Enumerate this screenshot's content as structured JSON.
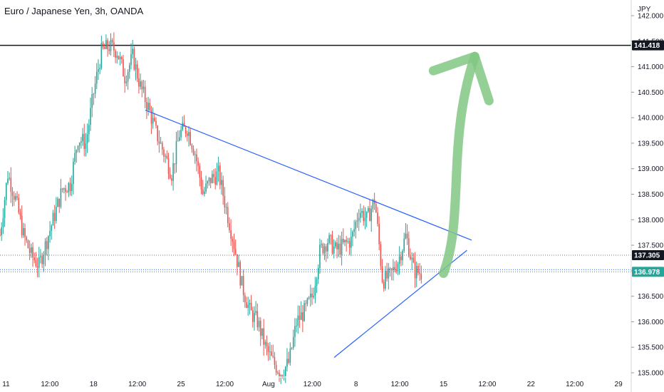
{
  "header": {
    "title": "Euro / Japanese Yen, 3h, OANDA"
  },
  "chart_data": {
    "type": "candlestick",
    "currency_label": "JPY",
    "ylim": [
      135.0,
      142.0
    ],
    "y_ticks": [
      "142.000",
      "141.500",
      "141.000",
      "140.500",
      "140.000",
      "139.500",
      "139.000",
      "138.500",
      "138.000",
      "137.500",
      "137.000",
      "136.500",
      "136.000",
      "135.500",
      "135.000"
    ],
    "x_ticks": [
      "11",
      "12:00",
      "18",
      "12:00",
      "25",
      "12:00",
      "Aug",
      "12:00",
      "8",
      "12:00",
      "15",
      "12:00",
      "22",
      "12:00",
      "29"
    ],
    "colors": {
      "up": "#26a69a",
      "down": "#ef5350",
      "trendline": "#2962ff",
      "arrow": "#81c784"
    },
    "price_tags": [
      {
        "label": "141.418",
        "value": 141.418,
        "style": "solid-dark"
      },
      {
        "label": "137.305",
        "value": 137.305,
        "style": "dotted-dark"
      },
      {
        "label": "136.978",
        "value": 136.978,
        "style": "dotted-teal"
      }
    ],
    "trendlines": [
      {
        "name": "resistance",
        "from": {
          "date": "Jul 21 15:00",
          "price": 140.15
        },
        "to": {
          "date": "Aug 16 18:00",
          "price": 137.6
        }
      },
      {
        "name": "support",
        "from": {
          "date": "Aug 5 18:00",
          "price": 135.3
        },
        "to": {
          "date": "Aug 16 09:00",
          "price": 137.4
        }
      }
    ],
    "projection_arrow": {
      "from": {
        "date": "Aug 14 12:00",
        "price": 136.95
      },
      "to": {
        "date": "Aug 17 00:00",
        "price": 141.2
      }
    },
    "price_path": [
      {
        "date": "Jul 10 00:00",
        "price": 137.7
      },
      {
        "date": "Jul 10 15:00",
        "price": 138.9
      },
      {
        "date": "Jul 11 06:00",
        "price": 138.4
      },
      {
        "date": "Jul 11 21:00",
        "price": 137.7
      },
      {
        "date": "Jul 12 12:00",
        "price": 137.3
      },
      {
        "date": "Jul 13 03:00",
        "price": 137.1
      },
      {
        "date": "Jul 13 18:00",
        "price": 137.6
      },
      {
        "date": "Jul 14 09:00",
        "price": 138.1
      },
      {
        "date": "Jul 15 00:00",
        "price": 138.6
      },
      {
        "date": "Jul 15 15:00",
        "price": 138.7
      },
      {
        "date": "Jul 16 06:00",
        "price": 139.6
      },
      {
        "date": "Jul 16 21:00",
        "price": 139.5
      },
      {
        "date": "Jul 17 12:00",
        "price": 140.5
      },
      {
        "date": "Jul 18 03:00",
        "price": 141.3
      },
      {
        "date": "Jul 18 18:00",
        "price": 141.4
      },
      {
        "date": "Jul 19 09:00",
        "price": 141.3
      },
      {
        "date": "Jul 20 00:00",
        "price": 140.8
      },
      {
        "date": "Jul 20 15:00",
        "price": 141.2
      },
      {
        "date": "Jul 21 06:00",
        "price": 140.6
      },
      {
        "date": "Jul 21 21:00",
        "price": 140.2
      },
      {
        "date": "Jul 22 12:00",
        "price": 139.7
      },
      {
        "date": "Jul 23 03:00",
        "price": 139.3
      },
      {
        "date": "Jul 23 18:00",
        "price": 138.9
      },
      {
        "date": "Jul 24 09:00",
        "price": 139.7
      },
      {
        "date": "Jul 25 00:00",
        "price": 139.8
      },
      {
        "date": "Jul 25 15:00",
        "price": 139.3
      },
      {
        "date": "Jul 26 06:00",
        "price": 138.5
      },
      {
        "date": "Jul 26 21:00",
        "price": 138.8
      },
      {
        "date": "Jul 27 12:00",
        "price": 138.9
      },
      {
        "date": "Jul 28 03:00",
        "price": 138.2
      },
      {
        "date": "Jul 28 18:00",
        "price": 137.5
      },
      {
        "date": "Jul 29 09:00",
        "price": 136.7
      },
      {
        "date": "Jul 30 00:00",
        "price": 136.2
      },
      {
        "date": "Jul 30 15:00",
        "price": 136.0
      },
      {
        "date": "Jul 31 06:00",
        "price": 135.5
      },
      {
        "date": "Jul 31 21:00",
        "price": 135.2
      },
      {
        "date": "Aug 1 12:00",
        "price": 135.0
      },
      {
        "date": "Aug 2 03:00",
        "price": 135.2
      },
      {
        "date": "Aug 2 18:00",
        "price": 136.0
      },
      {
        "date": "Aug 3 09:00",
        "price": 136.2
      },
      {
        "date": "Aug 4 00:00",
        "price": 136.5
      },
      {
        "date": "Aug 4 15:00",
        "price": 137.4
      },
      {
        "date": "Aug 5 06:00",
        "price": 137.6
      },
      {
        "date": "Aug 5 21:00",
        "price": 137.4
      },
      {
        "date": "Aug 6 12:00",
        "price": 137.5
      },
      {
        "date": "Aug 7 03:00",
        "price": 137.6
      },
      {
        "date": "Aug 7 18:00",
        "price": 138.2
      },
      {
        "date": "Aug 8 09:00",
        "price": 138.0
      },
      {
        "date": "Aug 9 00:00",
        "price": 138.4
      },
      {
        "date": "Aug 9 15:00",
        "price": 136.8
      },
      {
        "date": "Aug 10 06:00",
        "price": 136.9
      },
      {
        "date": "Aug 10 21:00",
        "price": 137.2
      },
      {
        "date": "Aug 11 12:00",
        "price": 137.7
      },
      {
        "date": "Aug 12 03:00",
        "price": 137.0
      },
      {
        "date": "Aug 12 18:00",
        "price": 136.95
      }
    ]
  }
}
